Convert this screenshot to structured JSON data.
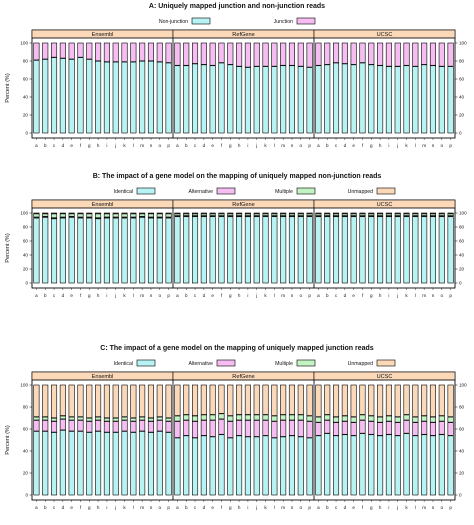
{
  "colors": {
    "identical": "#b8f3f3",
    "alternative": "#f6bdf2",
    "multiple": "#c2f3c2",
    "unmapped": "#fbd8b8",
    "nonjunction": "#b8f3f3",
    "junction": "#f6bdf2",
    "strip": "#fbd8b8"
  },
  "chart_data": [
    {
      "type": "bar",
      "stacked": true,
      "title": "A: Uniquely mapped junction and non-junction reads",
      "ylabel": "Percent (%)",
      "ylim": [
        0,
        100
      ],
      "yticks": [
        0,
        20,
        40,
        60,
        80,
        100
      ],
      "panels": [
        "Ensembl",
        "RefGene",
        "UCSC"
      ],
      "categories": [
        "a",
        "b",
        "c",
        "d",
        "e",
        "f",
        "g",
        "h",
        "i",
        "j",
        "k",
        "l",
        "m",
        "n",
        "o",
        "p"
      ],
      "series": [
        {
          "name": "Non-junction",
          "color_key": "nonjunction",
          "values": [
            [
              81,
              82,
              84,
              83,
              82,
              84,
              82,
              80,
              79,
              79,
              79,
              79,
              80,
              80,
              79,
              78
            ],
            [
              75,
              75,
              77,
              76,
              75,
              78,
              76,
              74,
              73,
              74,
              74,
              74,
              75,
              75,
              74,
              73
            ],
            [
              75,
              76,
              78,
              77,
              76,
              78,
              76,
              75,
              74,
              74,
              75,
              74,
              76,
              75,
              74,
              74
            ]
          ]
        },
        {
          "name": "Junction",
          "color_key": "junction",
          "values": [
            [
              19,
              18,
              16,
              17,
              18,
              16,
              18,
              20,
              21,
              21,
              21,
              21,
              20,
              20,
              21,
              22
            ],
            [
              25,
              25,
              23,
              24,
              25,
              22,
              24,
              26,
              27,
              26,
              26,
              26,
              25,
              25,
              26,
              27
            ],
            [
              25,
              24,
              22,
              23,
              24,
              22,
              24,
              25,
              26,
              26,
              25,
              26,
              24,
              25,
              26,
              26
            ]
          ]
        }
      ]
    },
    {
      "type": "bar",
      "stacked": true,
      "title": "B: The impact of a gene model on the mapping of uniquely mapped non-junction reads",
      "ylabel": "Percent (%)",
      "ylim": [
        0,
        100
      ],
      "yticks": [
        0,
        20,
        40,
        60,
        80,
        100
      ],
      "panels": [
        "Ensembl",
        "RefGene",
        "UCSC"
      ],
      "categories": [
        "a",
        "b",
        "c",
        "d",
        "e",
        "f",
        "g",
        "h",
        "i",
        "j",
        "k",
        "l",
        "m",
        "n",
        "o",
        "p"
      ],
      "series": [
        {
          "name": "Identical",
          "color_key": "identical",
          "values": [
            [
              93,
              94,
              92,
              93,
              94,
              93,
              93,
              92,
              93,
              93,
              93,
              93,
              94,
              93,
              93,
              93
            ],
            [
              95,
              95,
              95,
              95,
              95,
              95,
              95,
              95,
              95,
              95,
              95,
              95,
              95,
              95,
              95,
              95
            ],
            [
              95,
              95,
              95,
              95,
              95,
              95,
              95,
              95,
              95,
              95,
              95,
              95,
              95,
              95,
              95,
              95
            ]
          ]
        },
        {
          "name": "Alternative",
          "color_key": "alternative",
          "values": [
            [
              1,
              1,
              1,
              1,
              1,
              1,
              1,
              1,
              1,
              1,
              1,
              1,
              1,
              1,
              1,
              1
            ],
            [
              1,
              1,
              1,
              1,
              1,
              1,
              1,
              1,
              1,
              1,
              1,
              1,
              1,
              1,
              1,
              1
            ],
            [
              1,
              1,
              1,
              1,
              1,
              1,
              1,
              1,
              1,
              1,
              1,
              1,
              1,
              1,
              1,
              1
            ]
          ]
        },
        {
          "name": "Multiple",
          "color_key": "multiple",
          "values": [
            [
              5,
              4,
              6,
              5,
              4,
              5,
              5,
              6,
              5,
              5,
              5,
              5,
              4,
              5,
              5,
              5
            ],
            [
              3,
              3,
              3,
              3,
              3,
              3,
              3,
              3,
              3,
              3,
              3,
              3,
              3,
              3,
              3,
              3
            ],
            [
              3,
              3,
              3,
              3,
              3,
              3,
              3,
              3,
              3,
              3,
              3,
              3,
              3,
              3,
              3,
              3
            ]
          ]
        },
        {
          "name": "Unmapped",
          "color_key": "unmapped",
          "values": [
            [
              1,
              1,
              1,
              1,
              1,
              1,
              1,
              1,
              1,
              1,
              1,
              1,
              1,
              1,
              1,
              1
            ],
            [
              1,
              1,
              1,
              1,
              1,
              1,
              1,
              1,
              1,
              1,
              1,
              1,
              1,
              1,
              1,
              1
            ],
            [
              1,
              1,
              1,
              1,
              1,
              1,
              1,
              1,
              1,
              1,
              1,
              1,
              1,
              1,
              1,
              1
            ]
          ]
        }
      ]
    },
    {
      "type": "bar",
      "stacked": true,
      "title": "C: The impact of a gene model on the mapping of uniquely mapped junction reads",
      "ylabel": "Percent (%)",
      "ylim": [
        0,
        100
      ],
      "yticks": [
        0,
        20,
        40,
        60,
        80,
        100
      ],
      "panels": [
        "Ensembl",
        "RefGene",
        "UCSC"
      ],
      "categories": [
        "a",
        "b",
        "c",
        "d",
        "e",
        "f",
        "g",
        "h",
        "i",
        "j",
        "k",
        "l",
        "m",
        "n",
        "o",
        "p"
      ],
      "series": [
        {
          "name": "Identical",
          "color_key": "identical",
          "values": [
            [
              58,
              58,
              57,
              59,
              58,
              58,
              57,
              58,
              57,
              57,
              58,
              57,
              58,
              57,
              58,
              57
            ],
            [
              52,
              54,
              52,
              54,
              53,
              55,
              52,
              54,
              53,
              53,
              54,
              52,
              53,
              54,
              53,
              52
            ],
            [
              54,
              56,
              54,
              55,
              54,
              56,
              55,
              54,
              55,
              54,
              56,
              54,
              55,
              54,
              55,
              54
            ]
          ]
        },
        {
          "name": "Alternative",
          "color_key": "alternative",
          "values": [
            [
              10,
              10,
              10,
              10,
              10,
              10,
              10,
              10,
              10,
              10,
              10,
              10,
              10,
              10,
              10,
              10
            ],
            [
              15,
              14,
              15,
              14,
              15,
              14,
              15,
              14,
              15,
              15,
              14,
              15,
              15,
              14,
              15,
              15
            ],
            [
              12,
              12,
              12,
              12,
              12,
              12,
              12,
              12,
              12,
              12,
              12,
              12,
              12,
              12,
              12,
              12
            ]
          ]
        },
        {
          "name": "Multiple",
          "color_key": "multiple",
          "values": [
            [
              3,
              3,
              3,
              3,
              3,
              3,
              3,
              3,
              3,
              3,
              3,
              3,
              3,
              3,
              3,
              3
            ],
            [
              5,
              5,
              5,
              5,
              5,
              5,
              5,
              5,
              5,
              5,
              5,
              5,
              5,
              5,
              5,
              5
            ],
            [
              5,
              5,
              5,
              5,
              5,
              5,
              5,
              5,
              5,
              5,
              5,
              5,
              5,
              5,
              5,
              5
            ]
          ]
        },
        {
          "name": "Unmapped",
          "color_key": "unmapped",
          "values": [
            [
              29,
              29,
              30,
              28,
              29,
              29,
              30,
              29,
              30,
              30,
              29,
              30,
              29,
              30,
              29,
              30
            ],
            [
              28,
              27,
              28,
              27,
              27,
              26,
              28,
              27,
              27,
              27,
              27,
              28,
              27,
              27,
              27,
              28
            ],
            [
              29,
              27,
              29,
              28,
              29,
              27,
              28,
              29,
              28,
              29,
              27,
              29,
              28,
              29,
              28,
              29
            ]
          ]
        }
      ]
    }
  ]
}
